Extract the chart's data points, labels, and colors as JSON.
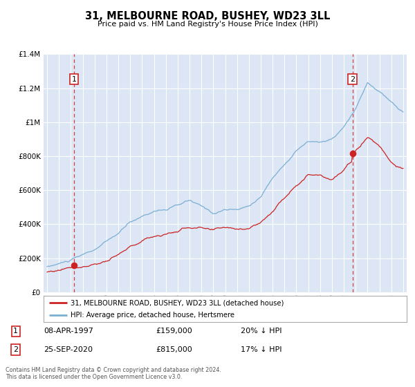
{
  "title": "31, MELBOURNE ROAD, BUSHEY, WD23 3LL",
  "subtitle": "Price paid vs. HM Land Registry's House Price Index (HPI)",
  "ylim": [
    0,
    1400000
  ],
  "xlim_start": 1994.7,
  "xlim_end": 2025.3,
  "background_color": "#dce6f5",
  "grid_color": "#ffffff",
  "hpi_line_color": "#7bafd4",
  "price_line_color": "#cc2222",
  "sale1_x": 1997.27,
  "sale1_y": 159000,
  "sale2_x": 2020.73,
  "sale2_y": 815000,
  "sale1_date": "08-APR-1997",
  "sale1_price": "£159,000",
  "sale1_note": "20% ↓ HPI",
  "sale2_date": "25-SEP-2020",
  "sale2_price": "£815,000",
  "sale2_note": "17% ↓ HPI",
  "legend_line1": "31, MELBOURNE ROAD, BUSHEY, WD23 3LL (detached house)",
  "legend_line2": "HPI: Average price, detached house, Hertsmere",
  "footer": "Contains HM Land Registry data © Crown copyright and database right 2024.\nThis data is licensed under the Open Government Licence v3.0.",
  "yticks": [
    0,
    200000,
    400000,
    600000,
    800000,
    1000000,
    1200000,
    1400000
  ],
  "ytick_labels": [
    "£0",
    "£200K",
    "£400K",
    "£600K",
    "£800K",
    "£1M",
    "£1.2M",
    "£1.4M"
  ]
}
